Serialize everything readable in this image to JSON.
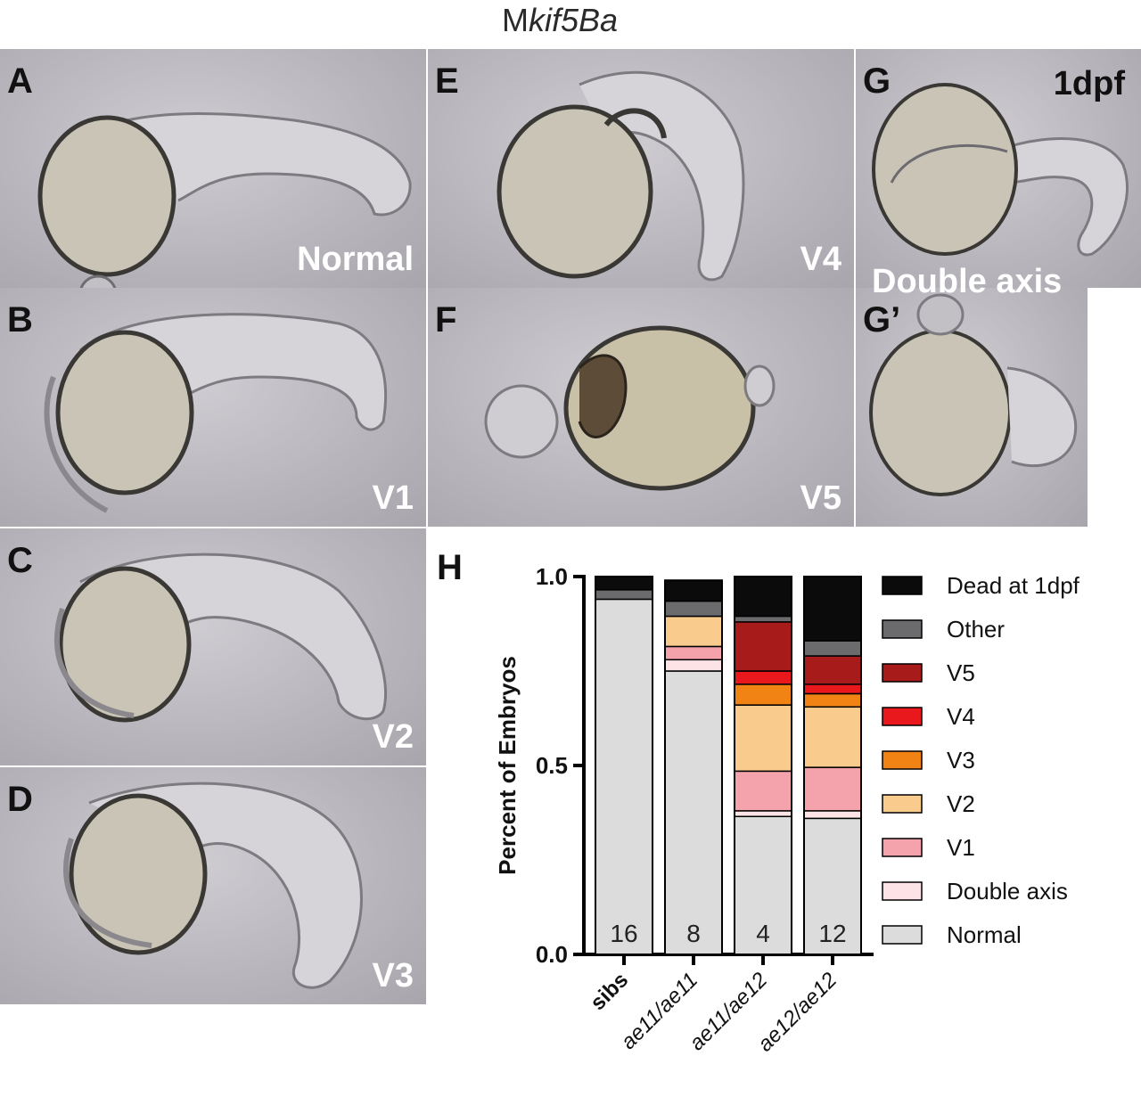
{
  "title": {
    "prefix": "M",
    "gene": "kif5Ba"
  },
  "panels": [
    {
      "id": "A",
      "label": "A",
      "phenotype": "Normal"
    },
    {
      "id": "B",
      "label": "B",
      "phenotype": "V1"
    },
    {
      "id": "C",
      "label": "C",
      "phenotype": "V2"
    },
    {
      "id": "D",
      "label": "D",
      "phenotype": "V3"
    },
    {
      "id": "E",
      "label": "E",
      "phenotype": "V4"
    },
    {
      "id": "F",
      "label": "F",
      "phenotype": "V5"
    },
    {
      "id": "G",
      "label": "G",
      "phenotype": "Double axis",
      "stage": "1dpf"
    },
    {
      "id": "G2",
      "label": "G’",
      "phenotype": ""
    }
  ],
  "chart_label": "H",
  "chart_data": {
    "type": "bar",
    "stacked": true,
    "title": "",
    "ylabel": "Percent of Embryos",
    "xlabel": "",
    "ylim": [
      0,
      1.0
    ],
    "yticks": [
      "0.0",
      "0.5",
      "1.0"
    ],
    "categories": [
      "sibs",
      "ae11/ae11",
      "ae11/ae12",
      "ae12/ae12"
    ],
    "category_style": [
      "bold",
      "italic",
      "italic",
      "italic"
    ],
    "n_labels": [
      "16",
      "8",
      "4",
      "12"
    ],
    "legend_position": "right",
    "series": [
      {
        "name": "Normal",
        "color": "#dcdcdd",
        "values": [
          0.94,
          0.75,
          0.365,
          0.36
        ]
      },
      {
        "name": "Double axis",
        "color": "#fde3e6",
        "values": [
          0.0,
          0.03,
          0.015,
          0.02
        ]
      },
      {
        "name": "V1",
        "color": "#f4a3ad",
        "values": [
          0.0,
          0.035,
          0.105,
          0.115
        ]
      },
      {
        "name": "V2",
        "color": "#f9cc8e",
        "values": [
          0.0,
          0.08,
          0.175,
          0.16
        ]
      },
      {
        "name": "V3",
        "color": "#f08314",
        "values": [
          0.0,
          0.0,
          0.055,
          0.035
        ]
      },
      {
        "name": "V4",
        "color": "#e8181c",
        "values": [
          0.0,
          0.0,
          0.035,
          0.025
        ]
      },
      {
        "name": "V5",
        "color": "#a71b1b",
        "values": [
          0.0,
          0.0,
          0.13,
          0.075
        ]
      },
      {
        "name": "Other",
        "color": "#6b6b6e",
        "values": [
          0.025,
          0.04,
          0.015,
          0.04
        ]
      },
      {
        "name": "Dead at 1dpf",
        "color": "#0b0b0b",
        "values": [
          0.035,
          0.055,
          0.105,
          0.17
        ]
      }
    ]
  }
}
